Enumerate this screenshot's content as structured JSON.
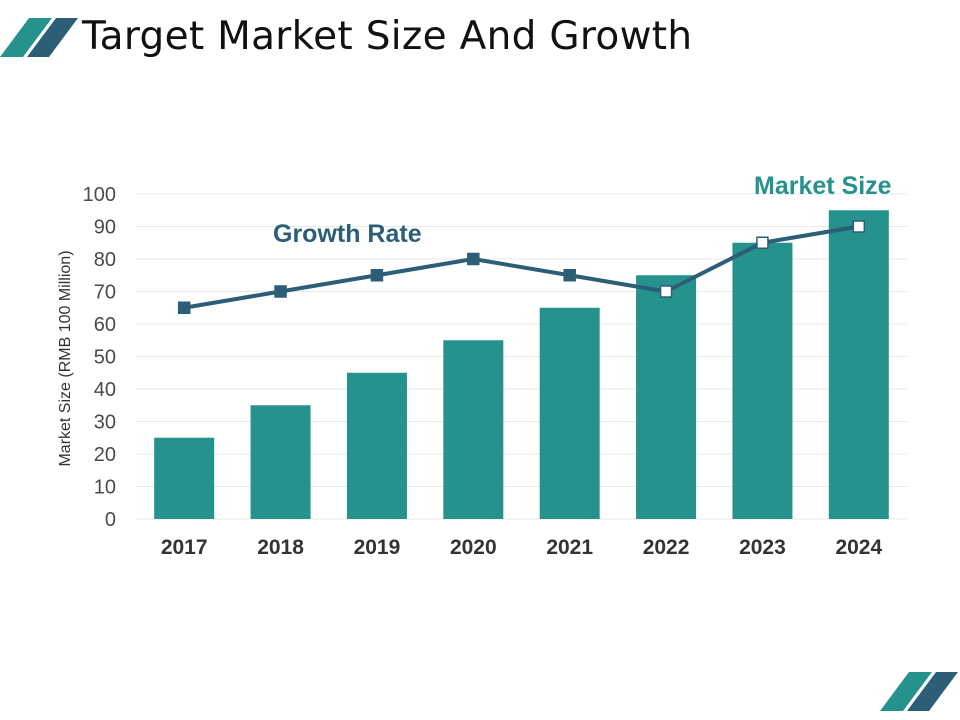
{
  "slide": {
    "title": "Target Market Size And Growth"
  },
  "colors": {
    "bar": "#26928e",
    "line": "#2c5e78",
    "marker_filled": "#2c5e78",
    "marker_open": "#ffffff",
    "grid": "#e8e8e8",
    "accent_teal": "#26928e",
    "accent_navy": "#2c5e78"
  },
  "chart_data": {
    "type": "bar",
    "title": "",
    "xlabel": "",
    "ylabel": "Market Size (RMB 100 Million)",
    "ylim": [
      0,
      100
    ],
    "yticks": [
      0,
      10,
      20,
      30,
      40,
      50,
      60,
      70,
      80,
      90,
      100
    ],
    "categories": [
      "2017",
      "2018",
      "2019",
      "2020",
      "2021",
      "2022",
      "2023",
      "2024"
    ],
    "series": [
      {
        "name": "Market Size",
        "type": "bar",
        "values": [
          25,
          35,
          45,
          55,
          65,
          75,
          85,
          95
        ]
      },
      {
        "name": "Growth Rate",
        "type": "line",
        "values": [
          65,
          70,
          75,
          80,
          75,
          70,
          85,
          90
        ]
      }
    ],
    "annotations": [
      "Growth Rate",
      "Market Size"
    ],
    "grid": true
  }
}
